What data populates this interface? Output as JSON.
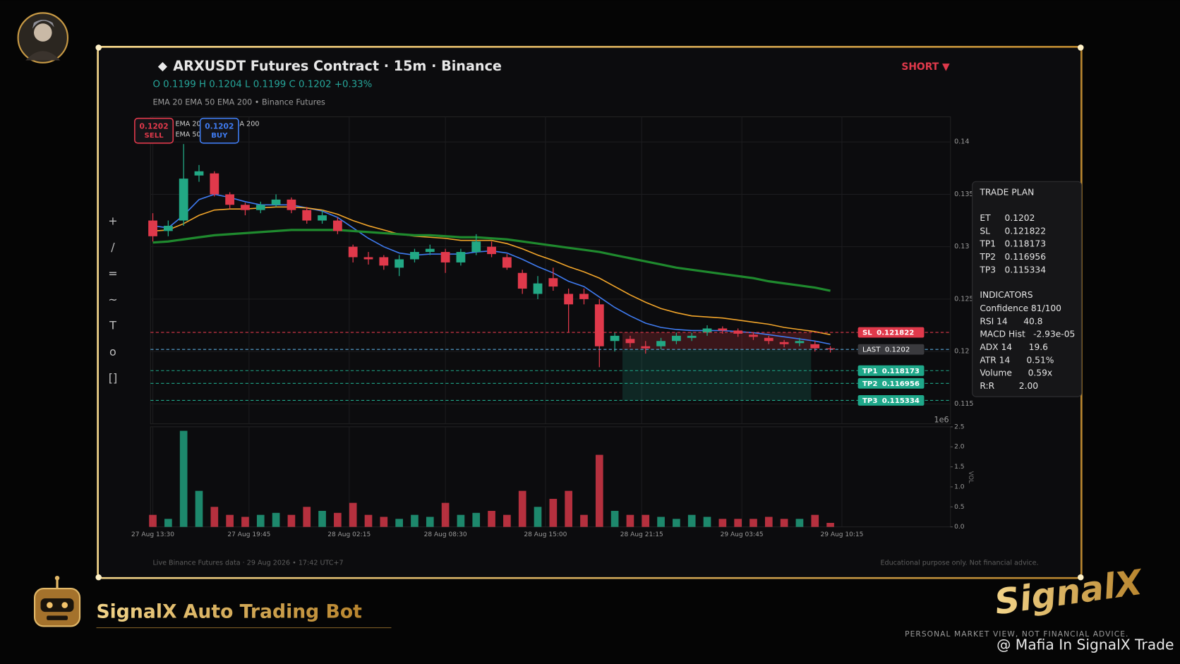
{
  "header": {
    "symbol": "ARXUSDT Futures Contract",
    "separator": "·",
    "interval": "15m",
    "exchange": "Binance",
    "ohlc": [
      "O 0.1199",
      "H 0.1204",
      "L 0.1199",
      "C 0.1202",
      "+0.33%"
    ],
    "indicators": [
      "EMA 20",
      "EMA 50",
      "EMA 200",
      "•",
      "Binance Futures"
    ],
    "side": "SHORT ▼"
  },
  "toolbar": [
    "+",
    "/",
    "=",
    "~",
    "T",
    "o",
    "[]"
  ],
  "trade_plan": {
    "title": "TRADE PLAN",
    "rows": [
      [
        "ET",
        "0.1202"
      ],
      [
        "SL",
        "0.121822"
      ],
      [
        "TP1",
        "0.118173"
      ],
      [
        "TP2",
        "0.116956"
      ],
      [
        "TP3",
        "0.115334"
      ]
    ],
    "indicators_title": "INDICATORS",
    "indicators": [
      [
        "Confidence",
        "81/100"
      ],
      [
        "RSI 14",
        "40.8"
      ],
      [
        "MACD Hist",
        "-2.93e-05"
      ],
      [
        "ADX 14",
        "19.6"
      ],
      [
        "ATR 14",
        "0.51%"
      ],
      [
        "Volume",
        "0.59x"
      ],
      [
        "R:R",
        "2.00"
      ]
    ]
  },
  "footer": {
    "left": "Live Binance Futures data  ·  29 Aug 2026 • 17:42 UTC+7",
    "right": "Educational purpose only. Not financial advice."
  },
  "branding": {
    "bot": "SignalX Auto Trading Bot",
    "logo": "SignalX",
    "tagline": "PERSONAL MARKET VIEW, NOT FINANCIAL ADVICE.",
    "watermark": "@ Mafia In SignalX Trade"
  },
  "chart_data": {
    "type": "candlestick",
    "up_color": "#22a884",
    "down_color": "#e0394b",
    "x": [
      0,
      4,
      8,
      12,
      16,
      20,
      24,
      28,
      32,
      36,
      40,
      44,
      48,
      52,
      56,
      60,
      64,
      68,
      72,
      76,
      80,
      84,
      88,
      92,
      96,
      100,
      104,
      108,
      112,
      116,
      120,
      124,
      128,
      132,
      136,
      140,
      144,
      148,
      152,
      156,
      160,
      164,
      168,
      172,
      176
    ],
    "open": [
      0.1325,
      0.1315,
      0.1325,
      0.1368,
      0.137,
      0.135,
      0.134,
      0.1335,
      0.134,
      0.1345,
      0.1335,
      0.1325,
      0.1325,
      0.13,
      0.129,
      0.129,
      0.128,
      0.1288,
      0.1295,
      0.1295,
      0.1285,
      0.1295,
      0.13,
      0.129,
      0.1275,
      0.1255,
      0.127,
      0.1255,
      0.1255,
      0.1245,
      0.121,
      0.1212,
      0.1205,
      0.1205,
      0.121,
      0.1213,
      0.1218,
      0.1222,
      0.122,
      0.1216,
      0.1213,
      0.1209,
      0.1208,
      0.1207,
      0.1203
    ],
    "high": [
      0.1332,
      0.1325,
      0.1398,
      0.1378,
      0.1372,
      0.1352,
      0.1342,
      0.1343,
      0.135,
      0.1347,
      0.1338,
      0.1335,
      0.1328,
      0.1302,
      0.1295,
      0.1292,
      0.1292,
      0.1298,
      0.1302,
      0.1298,
      0.1298,
      0.1312,
      0.1305,
      0.1293,
      0.1278,
      0.1272,
      0.128,
      0.126,
      0.126,
      0.125,
      0.1218,
      0.1215,
      0.121,
      0.1213,
      0.1218,
      0.1218,
      0.1225,
      0.1224,
      0.1222,
      0.1218,
      0.1215,
      0.1211,
      0.1213,
      0.121,
      0.1205
    ],
    "low": [
      0.1305,
      0.131,
      0.132,
      0.1362,
      0.1348,
      0.1336,
      0.133,
      0.1332,
      0.1338,
      0.1332,
      0.1322,
      0.1322,
      0.1312,
      0.1285,
      0.1283,
      0.1278,
      0.1272,
      0.1285,
      0.1292,
      0.1275,
      0.1282,
      0.1292,
      0.129,
      0.1278,
      0.1255,
      0.125,
      0.1258,
      0.1218,
      0.1245,
      0.1185,
      0.12,
      0.1204,
      0.1198,
      0.1202,
      0.1207,
      0.121,
      0.1215,
      0.1217,
      0.1214,
      0.1211,
      0.1207,
      0.1204,
      0.1205,
      0.12,
      0.1199
    ],
    "close": [
      0.131,
      0.132,
      0.1365,
      0.1372,
      0.135,
      0.134,
      0.1335,
      0.134,
      0.1345,
      0.1335,
      0.1325,
      0.133,
      0.1315,
      0.129,
      0.1288,
      0.1282,
      0.1288,
      0.1295,
      0.1298,
      0.1285,
      0.1295,
      0.1305,
      0.1293,
      0.128,
      0.126,
      0.1265,
      0.1262,
      0.1245,
      0.125,
      0.1205,
      0.1215,
      0.1208,
      0.1203,
      0.121,
      0.1215,
      0.1215,
      0.1222,
      0.122,
      0.1217,
      0.1214,
      0.121,
      0.1207,
      0.121,
      0.1203,
      0.1202
    ],
    "series": [
      {
        "name": "EMA 20",
        "color": "#3f7bf0",
        "values": [
          0.132,
          0.1318,
          0.133,
          0.1345,
          0.135,
          0.1347,
          0.1343,
          0.134,
          0.134,
          0.134,
          0.1337,
          0.1334,
          0.1328,
          0.1318,
          0.1308,
          0.13,
          0.1294,
          0.1292,
          0.1293,
          0.1293,
          0.1293,
          0.1295,
          0.1296,
          0.1294,
          0.1288,
          0.1281,
          0.1275,
          0.1267,
          0.1262,
          0.1252,
          0.1242,
          0.1234,
          0.1227,
          0.1223,
          0.1221,
          0.122,
          0.122,
          0.122,
          0.1219,
          0.1218,
          0.1216,
          0.1214,
          0.1212,
          0.121,
          0.1207
        ]
      },
      {
        "name": "EMA 50",
        "color": "#f2a52a",
        "values": [
          0.1315,
          0.1316,
          0.1322,
          0.133,
          0.1335,
          0.1336,
          0.1336,
          0.1337,
          0.1338,
          0.1338,
          0.1337,
          0.1335,
          0.1331,
          0.1325,
          0.132,
          0.1316,
          0.1312,
          0.131,
          0.1309,
          0.1308,
          0.1306,
          0.1306,
          0.1306,
          0.1303,
          0.1298,
          0.1292,
          0.1287,
          0.1281,
          0.1276,
          0.127,
          0.1262,
          0.1254,
          0.1247,
          0.1241,
          0.1237,
          0.1234,
          0.1233,
          0.1232,
          0.123,
          0.1228,
          0.1226,
          0.1223,
          0.1221,
          0.1219,
          0.1216
        ]
      },
      {
        "name": "EMA 200",
        "color": "#1f8a2e",
        "values": [
          0.1304,
          0.1305,
          0.1307,
          0.1309,
          0.1311,
          0.1312,
          0.1313,
          0.1314,
          0.1315,
          0.1316,
          0.1316,
          0.1316,
          0.1316,
          0.1315,
          0.1314,
          0.1313,
          0.1312,
          0.1311,
          0.1311,
          0.131,
          0.1309,
          0.1309,
          0.1308,
          0.1307,
          0.1305,
          0.1303,
          0.1301,
          0.1299,
          0.1297,
          0.1295,
          0.1292,
          0.1289,
          0.1286,
          0.1283,
          0.128,
          0.1278,
          0.1276,
          0.1274,
          0.1272,
          0.127,
          0.1267,
          0.1265,
          0.1263,
          0.1261,
          0.1258
        ]
      }
    ],
    "xlim": [
      -0.6,
      207.2
    ],
    "ylim": [
      0.1131,
      0.1424
    ],
    "yticks": [
      0.115,
      0.12,
      0.125,
      0.13,
      0.135,
      0.14
    ],
    "xticks": [
      {
        "value": 0,
        "label": "27 Aug 13:30"
      },
      {
        "value": 25,
        "label": "27 Aug 19:45"
      },
      {
        "value": 51,
        "label": "28 Aug 02:15"
      },
      {
        "value": 76,
        "label": "28 Aug 08:30"
      },
      {
        "value": 102,
        "label": "28 Aug 15:00"
      },
      {
        "value": 127,
        "label": "28 Aug 21:15"
      },
      {
        "value": 153,
        "label": "29 Aug 03:45"
      },
      {
        "value": 179,
        "label": "29 Aug 10:15"
      }
    ],
    "grid": true,
    "levels": [
      {
        "name": "SL",
        "value": 0.121822,
        "color": "#e0394b"
      },
      {
        "name": "LAST",
        "value": 0.1202,
        "color": "#5aa8d8"
      },
      {
        "name": "TP1",
        "value": 0.118173,
        "color": "#1fa88a"
      },
      {
        "name": "TP2",
        "value": 0.116956,
        "color": "#1fa88a"
      },
      {
        "name": "TP3",
        "value": 0.115334,
        "color": "#1fa88a"
      }
    ],
    "zone_x": [
      122,
      171
    ],
    "annotations": [
      {
        "price": "0.1202",
        "side": "SELL",
        "color": "#e0394b"
      },
      {
        "price": "0.1202",
        "side": "BUY",
        "color": "#3f7bf0"
      }
    ],
    "volume": {
      "values": [
        0.3,
        0.2,
        2.4,
        0.9,
        0.5,
        0.3,
        0.25,
        0.3,
        0.35,
        0.3,
        0.5,
        0.4,
        0.35,
        0.6,
        0.3,
        0.25,
        0.2,
        0.3,
        0.25,
        0.6,
        0.3,
        0.35,
        0.4,
        0.3,
        0.9,
        0.5,
        0.7,
        0.9,
        0.3,
        1.8,
        0.4,
        0.3,
        0.3,
        0.25,
        0.2,
        0.3,
        0.25,
        0.2,
        0.2,
        0.2,
        0.25,
        0.2,
        0.2,
        0.3,
        0.1
      ],
      "ylim": [
        0,
        2.5
      ],
      "yticks": [
        {
          "value": 0,
          "label": "0.0"
        },
        0.5,
        {
          "value": 1,
          "label": "1.0"
        },
        1.5,
        {
          "value": 2,
          "label": "2.0"
        },
        2.5
      ],
      "offset_label": "1e6",
      "axis_label": "VOL"
    }
  }
}
